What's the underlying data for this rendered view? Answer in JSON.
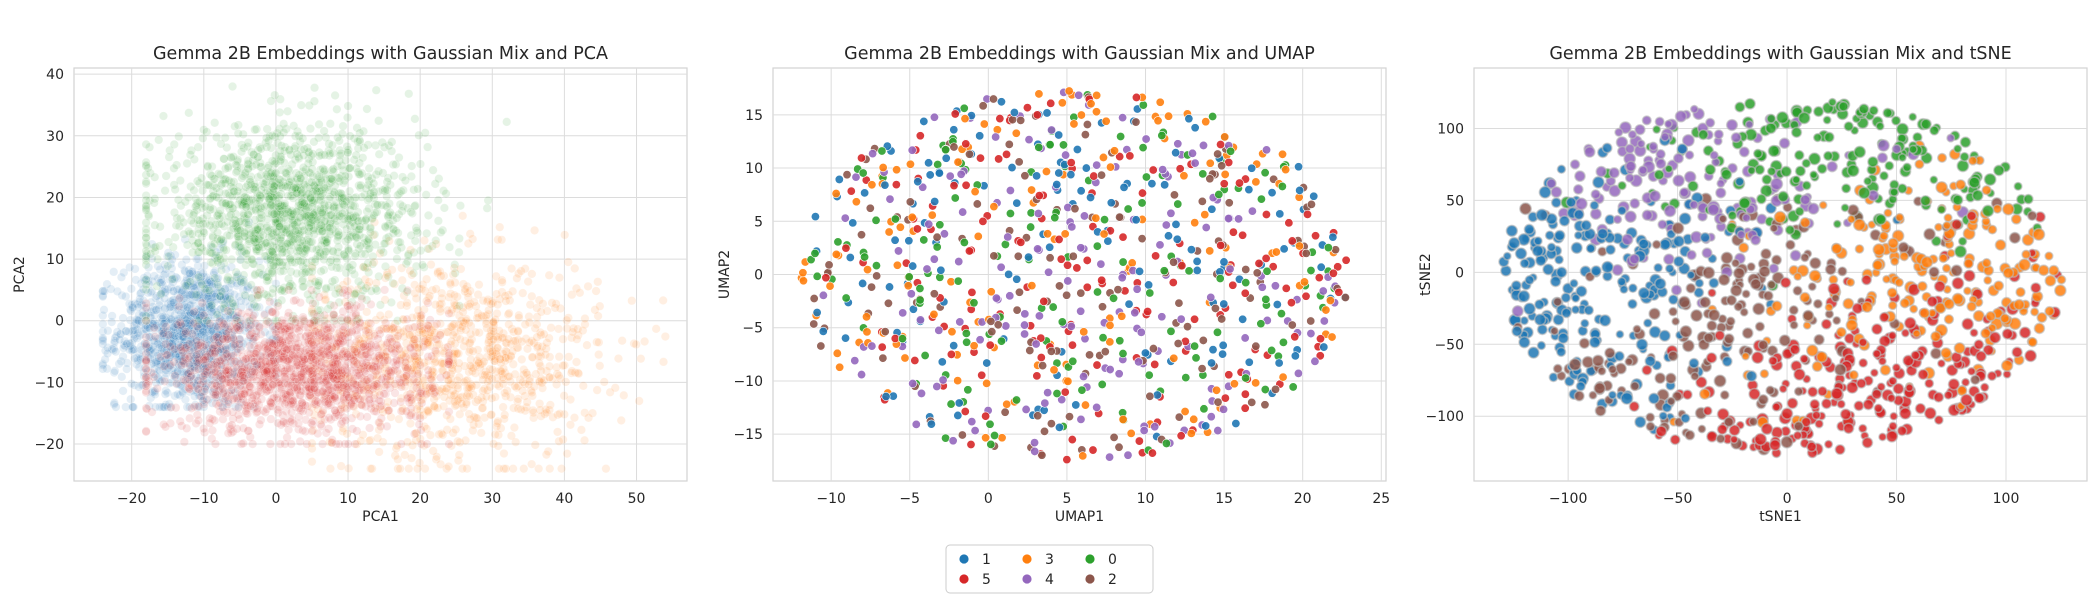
{
  "chart_data": [
    {
      "type": "scatter",
      "title": "Gemma 2B Embeddings with Gaussian Mix and PCA",
      "xlabel": "PCA1",
      "ylabel": "PCA2",
      "xlim": [
        -28,
        57
      ],
      "ylim": [
        -26,
        41
      ],
      "xticks": [
        -20,
        -10,
        0,
        10,
        20,
        30,
        40,
        50
      ],
      "yticks": [
        -20,
        -10,
        0,
        10,
        20,
        30,
        40
      ],
      "grid": true,
      "point_alpha": 0.12,
      "series": [
        {
          "name": "1",
          "color": "#1f77b4",
          "center": [
            -12,
            -2
          ],
          "spread": [
            5,
            6
          ],
          "extent": {
            "x": [
              -24,
              0
            ],
            "y": [
              -14,
              16
            ]
          },
          "approx_points": 1200
        },
        {
          "name": "3",
          "color": "#ff7f0e",
          "center": [
            25,
            -6
          ],
          "spread": [
            10,
            8
          ],
          "extent": {
            "x": [
              5,
              54
            ],
            "y": [
              -24,
              23
            ]
          },
          "approx_points": 1000
        },
        {
          "name": "0",
          "color": "#2ca02c",
          "center": [
            2,
            17
          ],
          "spread": [
            9,
            7
          ],
          "extent": {
            "x": [
              -18,
              32
            ],
            "y": [
              0,
              38
            ]
          },
          "approx_points": 1500
        },
        {
          "name": "5",
          "color": "#d62728",
          "center": [
            3,
            -8
          ],
          "spread": [
            9,
            5
          ],
          "extent": {
            "x": [
              -18,
              24
            ],
            "y": [
              -20,
              5
            ]
          },
          "approx_points": 1500
        }
      ]
    },
    {
      "type": "scatter",
      "title": "Gemma 2B Embeddings with Gaussian Mix and UMAP",
      "xlabel": "UMAP1",
      "ylabel": "UMAP2",
      "xlim": [
        -13.7,
        25.3
      ],
      "ylim": [
        -19.4,
        19.4
      ],
      "xticks": [
        -10,
        -5,
        0,
        5,
        10,
        15,
        20,
        25
      ],
      "yticks": [
        -15,
        -10,
        -5,
        0,
        5,
        10,
        15
      ],
      "grid": true,
      "point_alpha": 0.9,
      "distribution": "ellipse",
      "center": [
        5.5,
        0
      ],
      "radii": [
        17.5,
        17.5
      ],
      "approx_points": 950,
      "series": [
        {
          "name": "1",
          "color": "#1f77b4"
        },
        {
          "name": "3",
          "color": "#ff7f0e"
        },
        {
          "name": "0",
          "color": "#2ca02c"
        },
        {
          "name": "5",
          "color": "#d62728"
        },
        {
          "name": "4",
          "color": "#9467bd"
        },
        {
          "name": "2",
          "color": "#8c564b"
        }
      ]
    },
    {
      "type": "scatter",
      "title": "Gemma 2B Embeddings with Gaussian Mix and tSNE",
      "xlabel": "tSNE1",
      "ylabel": "tSNE2",
      "xlim": [
        -143,
        137
      ],
      "ylim": [
        -145,
        142
      ],
      "xticks": [
        -100,
        -50,
        0,
        50,
        100
      ],
      "yticks": [
        -100,
        -50,
        0,
        50,
        100
      ],
      "grid": true,
      "point_alpha": 0.85,
      "distribution": "ellipse",
      "center": [
        -2,
        -2
      ],
      "radii": [
        128,
        128
      ],
      "approx_points": 1300,
      "series": [
        {
          "name": "1",
          "color": "#1f77b4",
          "region_center": [
            -70,
            5
          ]
        },
        {
          "name": "3",
          "color": "#ff7f0e",
          "region_center": [
            35,
            -10
          ]
        },
        {
          "name": "0",
          "color": "#2ca02c",
          "region_center": [
            5,
            85
          ]
        },
        {
          "name": "5",
          "color": "#d62728",
          "region_center": [
            40,
            -65
          ]
        },
        {
          "name": "4",
          "color": "#9467bd",
          "region_center": [
            -35,
            55
          ]
        },
        {
          "name": "2",
          "color": "#8c564b",
          "region_center": [
            -15,
            -15
          ]
        }
      ]
    }
  ],
  "legend": {
    "placement": "bottom-center",
    "columns": 3,
    "entries": [
      {
        "label": "1",
        "color": "#1f77b4"
      },
      {
        "label": "3",
        "color": "#ff7f0e"
      },
      {
        "label": "0",
        "color": "#2ca02c"
      },
      {
        "label": "5",
        "color": "#d62728"
      },
      {
        "label": "4",
        "color": "#9467bd"
      },
      {
        "label": "2",
        "color": "#8c564b"
      }
    ]
  }
}
